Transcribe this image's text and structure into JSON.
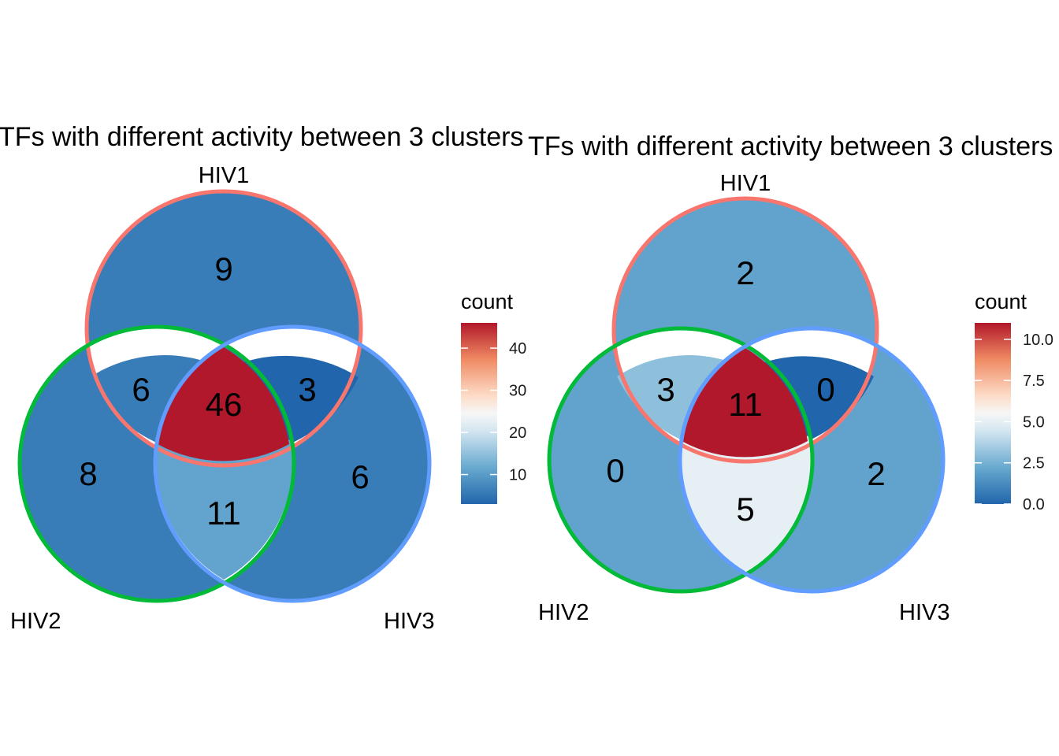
{
  "panels": [
    {
      "title": "TFs with different activity between 3 clusters",
      "sets": [
        {
          "label": "HIV1",
          "color": "#F8766D"
        },
        {
          "label": "HIV2",
          "color": "#00BA38"
        },
        {
          "label": "HIV3",
          "color": "#619CFF"
        }
      ],
      "regions": {
        "HIV1_only": 9,
        "HIV2_only": 8,
        "HIV3_only": 6,
        "HIV1_HIV2": 6,
        "HIV1_HIV3": 3,
        "HIV2_HIV3": 11,
        "HIV1_HIV2_HIV3": 46
      },
      "legend": {
        "title": "count",
        "ticks": [
          "10",
          "20",
          "30",
          "40"
        ],
        "min": 3,
        "max": 46
      }
    },
    {
      "title": "TFs with different activity between 3 clusters",
      "sets": [
        {
          "label": "HIV1",
          "color": "#F8766D"
        },
        {
          "label": "HIV2",
          "color": "#00BA38"
        },
        {
          "label": "HIV3",
          "color": "#619CFF"
        }
      ],
      "regions": {
        "HIV1_only": 2,
        "HIV2_only": 0,
        "HIV3_only": 2,
        "HIV1_HIV2": 3,
        "HIV1_HIV3": 0,
        "HIV2_HIV3": 5,
        "HIV1_HIV2_HIV3": 11
      },
      "legend": {
        "title": "count",
        "ticks": [
          "0.0",
          "2.5",
          "5.0",
          "7.5",
          "10.0"
        ],
        "min": 0,
        "max": 11
      }
    }
  ]
}
